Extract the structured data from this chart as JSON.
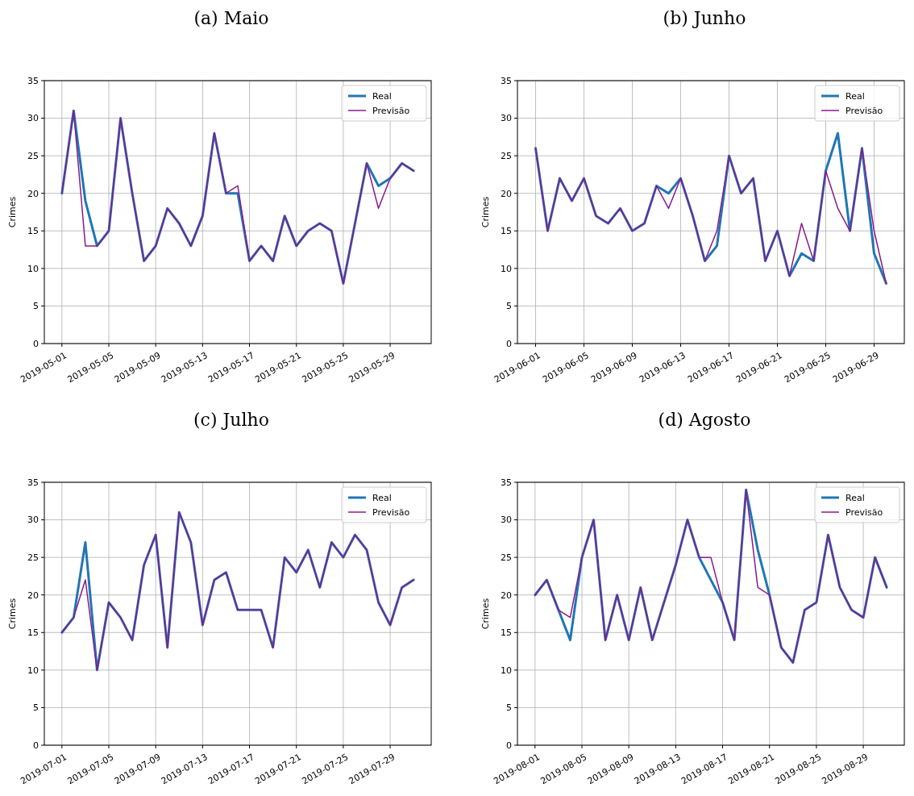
{
  "chart_data": [
    {
      "type": "line",
      "title": "(a) Maio",
      "ylabel": "Crimes",
      "xlim": [
        "2019-04-29T12:00",
        "2019-06-01T12:00"
      ],
      "ylim": [
        0,
        35
      ],
      "yticks": [
        0,
        5,
        10,
        15,
        20,
        25,
        30,
        35
      ],
      "xticks": [
        "2019-05-01",
        "2019-05-05",
        "2019-05-09",
        "2019-05-13",
        "2019-05-17",
        "2019-05-21",
        "2019-05-25",
        "2019-05-29"
      ],
      "grid": true,
      "legend": "top right",
      "x": [
        "2019-05-01",
        "2019-05-02",
        "2019-05-03",
        "2019-05-04",
        "2019-05-05",
        "2019-05-06",
        "2019-05-07",
        "2019-05-08",
        "2019-05-09",
        "2019-05-10",
        "2019-05-11",
        "2019-05-12",
        "2019-05-13",
        "2019-05-14",
        "2019-05-15",
        "2019-05-16",
        "2019-05-17",
        "2019-05-18",
        "2019-05-19",
        "2019-05-20",
        "2019-05-21",
        "2019-05-22",
        "2019-05-23",
        "2019-05-24",
        "2019-05-25",
        "2019-05-26",
        "2019-05-27",
        "2019-05-28",
        "2019-05-29",
        "2019-05-30",
        "2019-05-31"
      ],
      "series": [
        {
          "name": "Real",
          "color": "#1f77b4",
          "values": [
            20,
            31,
            19,
            13,
            15,
            30,
            20,
            11,
            13,
            18,
            16,
            13,
            17,
            28,
            20,
            20,
            11,
            13,
            11,
            17,
            13,
            15,
            16,
            15,
            8,
            16,
            24,
            21,
            22,
            24,
            23
          ]
        },
        {
          "name": "Previsão",
          "color": "#8b1a8b",
          "values": [
            20,
            31,
            13,
            13,
            15,
            30,
            20,
            11,
            13,
            18,
            16,
            13,
            17,
            28,
            20,
            21,
            11,
            13,
            11,
            17,
            13,
            15,
            16,
            15,
            8,
            16,
            24,
            18,
            22,
            24,
            23
          ]
        }
      ]
    },
    {
      "type": "line",
      "title": "(b) Junho",
      "ylabel": "Crimes",
      "xlim": [
        "2019-05-30T12:00",
        "2019-07-01T12:00"
      ],
      "ylim": [
        0,
        35
      ],
      "yticks": [
        0,
        5,
        10,
        15,
        20,
        25,
        30,
        35
      ],
      "xticks": [
        "2019-06-01",
        "2019-06-05",
        "2019-06-09",
        "2019-06-13",
        "2019-06-17",
        "2019-06-21",
        "2019-06-25",
        "2019-06-29"
      ],
      "grid": true,
      "legend": "top right",
      "x": [
        "2019-06-01",
        "2019-06-02",
        "2019-06-03",
        "2019-06-04",
        "2019-06-05",
        "2019-06-06",
        "2019-06-07",
        "2019-06-08",
        "2019-06-09",
        "2019-06-10",
        "2019-06-11",
        "2019-06-12",
        "2019-06-13",
        "2019-06-14",
        "2019-06-15",
        "2019-06-16",
        "2019-06-17",
        "2019-06-18",
        "2019-06-19",
        "2019-06-20",
        "2019-06-21",
        "2019-06-22",
        "2019-06-23",
        "2019-06-24",
        "2019-06-25",
        "2019-06-26",
        "2019-06-27",
        "2019-06-28",
        "2019-06-29",
        "2019-06-30"
      ],
      "series": [
        {
          "name": "Real",
          "color": "#1f77b4",
          "values": [
            26,
            15,
            22,
            19,
            22,
            17,
            16,
            18,
            15,
            16,
            21,
            20,
            22,
            17,
            11,
            13,
            25,
            20,
            22,
            11,
            15,
            9,
            12,
            11,
            23,
            28,
            15,
            26,
            12,
            8
          ]
        },
        {
          "name": "Previsão",
          "color": "#8b1a8b",
          "values": [
            26,
            15,
            22,
            19,
            22,
            17,
            16,
            18,
            15,
            16,
            21,
            18,
            22,
            17,
            11,
            15,
            25,
            20,
            22,
            11,
            15,
            9,
            16,
            11,
            23,
            18,
            15,
            26,
            15,
            8
          ]
        }
      ]
    },
    {
      "type": "line",
      "title": "(c) Julho",
      "ylabel": "Crimes",
      "xlim": [
        "2019-06-29T12:00",
        "2019-08-01T12:00"
      ],
      "ylim": [
        0,
        35
      ],
      "yticks": [
        0,
        5,
        10,
        15,
        20,
        25,
        30,
        35
      ],
      "xticks": [
        "2019-07-01",
        "2019-07-05",
        "2019-07-09",
        "2019-07-13",
        "2019-07-17",
        "2019-07-21",
        "2019-07-25",
        "2019-07-29"
      ],
      "grid": true,
      "legend": "top right",
      "x": [
        "2019-07-01",
        "2019-07-02",
        "2019-07-03",
        "2019-07-04",
        "2019-07-05",
        "2019-07-06",
        "2019-07-07",
        "2019-07-08",
        "2019-07-09",
        "2019-07-10",
        "2019-07-11",
        "2019-07-12",
        "2019-07-13",
        "2019-07-14",
        "2019-07-15",
        "2019-07-16",
        "2019-07-17",
        "2019-07-18",
        "2019-07-19",
        "2019-07-20",
        "2019-07-21",
        "2019-07-22",
        "2019-07-23",
        "2019-07-24",
        "2019-07-25",
        "2019-07-26",
        "2019-07-27",
        "2019-07-28",
        "2019-07-29",
        "2019-07-30",
        "2019-07-31"
      ],
      "series": [
        {
          "name": "Real",
          "color": "#1f77b4",
          "values": [
            15,
            17,
            27,
            10,
            19,
            17,
            14,
            24,
            28,
            13,
            31,
            27,
            16,
            22,
            23,
            18,
            18,
            18,
            13,
            25,
            23,
            26,
            21,
            27,
            25,
            28,
            26,
            19,
            16,
            21,
            22
          ]
        },
        {
          "name": "Previsão",
          "color": "#8b1a8b",
          "values": [
            15,
            17,
            22,
            10,
            19,
            17,
            14,
            24,
            28,
            13,
            31,
            27,
            16,
            22,
            23,
            18,
            18,
            18,
            13,
            25,
            23,
            26,
            21,
            27,
            25,
            28,
            26,
            19,
            16,
            21,
            22
          ]
        }
      ]
    },
    {
      "type": "line",
      "title": "(d) Agosto",
      "ylabel": "Crimes",
      "xlim": [
        "2019-07-30T12:00",
        "2019-09-01T12:00"
      ],
      "ylim": [
        0,
        35
      ],
      "yticks": [
        0,
        5,
        10,
        15,
        20,
        25,
        30,
        35
      ],
      "xticks": [
        "2019-08-01",
        "2019-08-05",
        "2019-08-09",
        "2019-08-13",
        "2019-08-17",
        "2019-08-21",
        "2019-08-25",
        "2019-08-29"
      ],
      "grid": true,
      "legend": "top right",
      "x": [
        "2019-08-01",
        "2019-08-02",
        "2019-08-03",
        "2019-08-04",
        "2019-08-05",
        "2019-08-06",
        "2019-08-07",
        "2019-08-08",
        "2019-08-09",
        "2019-08-10",
        "2019-08-11",
        "2019-08-12",
        "2019-08-13",
        "2019-08-14",
        "2019-08-15",
        "2019-08-16",
        "2019-08-17",
        "2019-08-18",
        "2019-08-19",
        "2019-08-20",
        "2019-08-21",
        "2019-08-22",
        "2019-08-23",
        "2019-08-24",
        "2019-08-25",
        "2019-08-26",
        "2019-08-27",
        "2019-08-28",
        "2019-08-29",
        "2019-08-30",
        "2019-08-31"
      ],
      "series": [
        {
          "name": "Real",
          "color": "#1f77b4",
          "values": [
            20,
            22,
            18,
            14,
            25,
            30,
            14,
            20,
            14,
            21,
            14,
            19,
            24,
            30,
            25,
            22,
            19,
            14,
            34,
            26,
            20,
            13,
            11,
            18,
            19,
            28,
            21,
            18,
            17,
            25,
            21
          ]
        },
        {
          "name": "Previsão",
          "color": "#8b1a8b",
          "values": [
            20,
            22,
            18,
            17,
            25,
            30,
            14,
            20,
            14,
            21,
            14,
            19,
            24,
            30,
            25,
            25,
            19,
            14,
            34,
            21,
            20,
            13,
            11,
            18,
            19,
            28,
            21,
            18,
            17,
            25,
            21
          ]
        }
      ]
    }
  ]
}
